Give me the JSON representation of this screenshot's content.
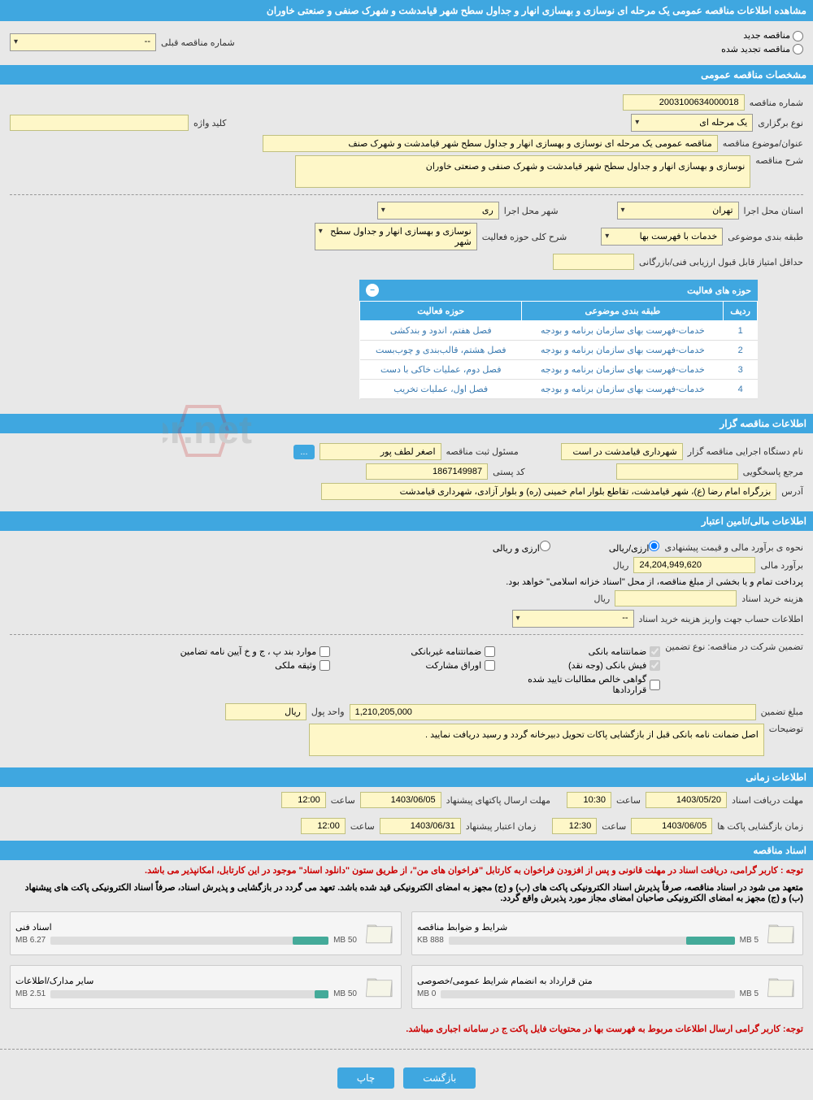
{
  "page_title": "مشاهده اطلاعات مناقصه عمومی یک مرحله ای نوسازی و بهسازی انهار و جداول سطح شهر قیامدشت و شهرک صنفی و صنعتی خاوران",
  "radio": {
    "new_tender": "مناقصه جدید",
    "renewed_tender": "مناقصه تجدید شده",
    "prev_label": "شماره مناقصه قبلی",
    "prev_value": "--"
  },
  "sections": {
    "general": "مشخصات مناقصه عمومی",
    "organizer": "اطلاعات مناقصه گزار",
    "financial": "اطلاعات مالی/تامین اعتبار",
    "timing": "اطلاعات زمانی",
    "docs": "اسناد مناقصه"
  },
  "general": {
    "tender_no_label": "شماره مناقصه",
    "tender_no": "2003100634000018",
    "type_label": "نوع برگزاری",
    "type": "یک مرحله ای",
    "keyword_label": "کلید واژه",
    "keyword": "",
    "subject_label": "عنوان/موضوع مناقصه",
    "subject": "مناقصه عمومی یک مرحله ای نوسازی و بهسازی انهار و جداول سطح شهر قیامدشت و شهرک صنف",
    "desc_label": "شرح مناقصه",
    "desc": "نوسازی و بهسازی انهار و جداول سطح شهر قیامدشت و شهرک صنفی و صنعتی خاوران",
    "province_label": "استان محل اجرا",
    "province": "تهران",
    "city_label": "شهر محل اجرا",
    "city": "ری",
    "category_label": "طبقه بندی موضوعی",
    "category": "خدمات با فهرست بها",
    "scope_label": "شرح کلی حوزه فعالیت",
    "scope": "نوسازی و بهسازی انهار و جداول سطح شهر",
    "min_score_label": "حداقل امتیاز قابل قبول ارزیابی فنی/بازرگانی",
    "min_score": ""
  },
  "activity_table": {
    "title": "حوزه های فعالیت",
    "headers": {
      "row": "ردیف",
      "cat": "طبقه بندی موضوعی",
      "field": "حوزه فعالیت"
    },
    "rows": [
      {
        "n": "1",
        "cat": "خدمات-فهرست بهای سازمان برنامه و بودجه",
        "field": "فصل هفتم، اندود و بندکشی"
      },
      {
        "n": "2",
        "cat": "خدمات-فهرست بهای سازمان برنامه و بودجه",
        "field": "فصل هشتم، قالب‌بندی و چوب‌بست"
      },
      {
        "n": "3",
        "cat": "خدمات-فهرست بهای سازمان برنامه و بودجه",
        "field": "فصل دوم، عملیات خاکی با دست"
      },
      {
        "n": "4",
        "cat": "خدمات-فهرست بهای سازمان برنامه و بودجه",
        "field": "فصل اول، عملیات تخریب"
      }
    ]
  },
  "organizer": {
    "dev_label": "نام دستگاه اجرایی مناقصه گزار",
    "dev": "شهرداری قیامدشت در است",
    "resp_label": "مسئول ثبت مناقصه",
    "resp": "اصغر لطف پور",
    "more": "...",
    "ref_label": "مرجع پاسخگویی",
    "ref": "",
    "postal_label": "کد پستی",
    "postal": "1867149987",
    "addr_label": "آدرس",
    "addr": "بزرگراه امام رضا (ع)، شهر قیامدشت، تقاطع بلوار امام خمینی (ره) و بلوار آزادی، شهرداری قیامدشت"
  },
  "financial": {
    "method_label": "نحوه ی برآورد مالی و قیمت پیشنهادی",
    "opt1": "ارزی/ریالی",
    "opt2": "ارزی و ریالی",
    "est_label": "برآورد مالی",
    "est": "24,204,949,620",
    "unit": "ریال",
    "note": "پرداخت تمام و یا بخشی از مبلغ مناقصه، از محل \"اسناد خزانه اسلامی\" خواهد بود.",
    "cost_label": "هزینه خرید اسناد",
    "cost": "",
    "acc_label": "اطلاعات حساب جهت واریز هزینه خرید اسناد",
    "acc": "--"
  },
  "guarantee": {
    "title": "تضمین شرکت در مناقصه‌:   نوع تضمین",
    "opts": {
      "bank": "ضمانتنامه بانکی",
      "nonbank": "ضمانتنامه غیربانکی",
      "regs": "موارد بند پ ، ج و خ آیین نامه تضامین",
      "cash": "فیش بانکی (وجه نقد)",
      "bonds": "اوراق مشارکت",
      "prop": "وثیقه ملکی",
      "claims": "گواهی خالص مطالبات تایید شده قراردادها"
    },
    "amount_label": "مبلغ تضمین",
    "amount": "1,210,205,000",
    "unit_label": "واحد پول",
    "unit": "ریال",
    "desc_label": "توضیحات",
    "desc": "اصل ضمانت نامه بانکی قبل از بازگشایی پاکات تحویل دبیرخانه گردد و رسید دریافت نمایید ."
  },
  "timing": {
    "receive_label": "مهلت دریافت اسناد",
    "receive_date": "1403/05/20",
    "receive_time_label": "ساعت",
    "receive_time": "10:30",
    "send_label": "مهلت ارسال پاکتهای پیشنهاد",
    "send_date": "1403/06/05",
    "send_time": "12:00",
    "open_label": "زمان بازگشایی پاکت ها",
    "open_date": "1403/06/05",
    "open_time": "12:30",
    "valid_label": "زمان اعتبار پیشنهاد",
    "valid_date": "1403/06/31",
    "valid_time": "12:00"
  },
  "docs": {
    "note1": "توجه : کاربر گرامی، دریافت اسناد در مهلت قانونی و پس از افزودن فراخوان به کارتابل \"فراخوان های من\"، از طریق ستون \"دانلود اسناد\" موجود در این کارتابل، امکانپذیر می باشد.",
    "note2": "متعهد می شود در اسناد مناقصه، صرفاً پذیرش اسناد الکترونیکی پاکت های (ب) و (ج) مجهز به امضای الکترونیکی قید شده باشد. تعهد می گردد در بازگشایی و پذیرش اسناد، صرفاً اسناد الکترونیکی پاکت های پیشنهاد (ب) و (ج) مجهز به امضای الکترونیکی صاحبان امضای مجاز مورد پذیرش واقع گردد.",
    "files": [
      {
        "title": "شرایط و ضوابط مناقصه",
        "used": "888 KB",
        "total": "5 MB",
        "pct": 17
      },
      {
        "title": "اسناد فنی",
        "used": "6.27 MB",
        "total": "50 MB",
        "pct": 13
      },
      {
        "title": "متن قرارداد به انضمام شرایط عمومی/خصوصی",
        "used": "0 MB",
        "total": "5 MB",
        "pct": 0
      },
      {
        "title": "سایر مدارک/اطلاعات",
        "used": "2.51 MB",
        "total": "50 MB",
        "pct": 5
      }
    ],
    "footer": "توجه: کاربر گرامی ارسال اطلاعات مربوط به فهرست بها در محتویات فایل پاکت ج در سامانه اجباری میباشد."
  },
  "buttons": {
    "back": "بازگشت",
    "print": "چاپ"
  },
  "colors": {
    "header": "#3fa7e0",
    "field_bg": "#fef7c8",
    "warning": "#cc0000",
    "link": "#3a7ab0"
  }
}
